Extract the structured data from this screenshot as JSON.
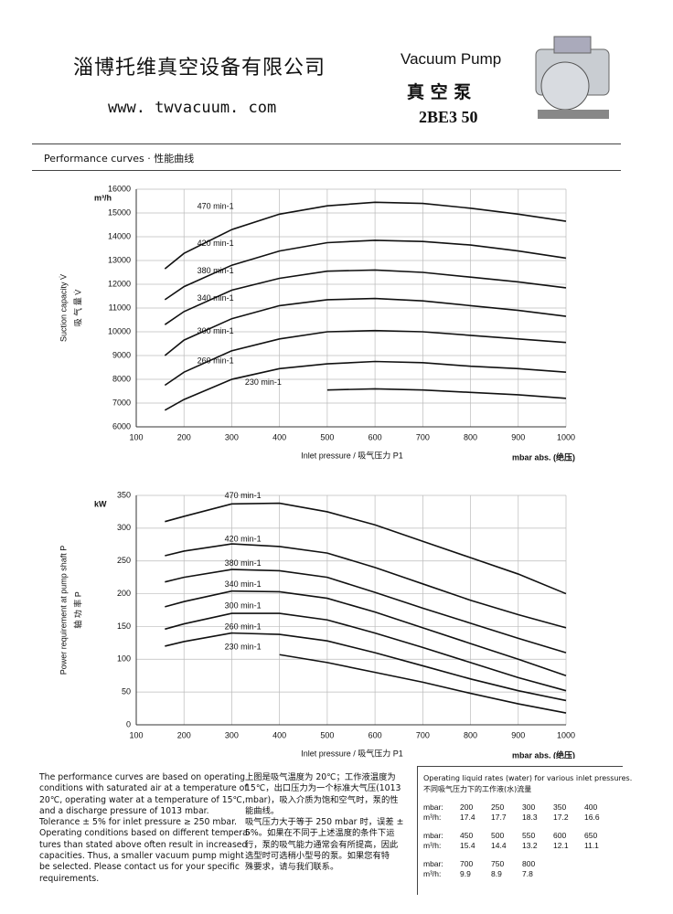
{
  "header": {
    "company": "淄博托维真空设备有限公司",
    "website": "www. twvacuum. com",
    "product_en": "Vacuum Pump",
    "product_cn": "真 空 泵",
    "model": "2BE3 50"
  },
  "section_title": "Performance curves · 性能曲线",
  "chart_data": [
    {
      "type": "line",
      "y_unit": "m³/h",
      "y_label": "Suction capacity V̇",
      "y_label_cn": "吸 气 量 V̇",
      "x_label": "Inlet pressure / 吸气压力 P1",
      "x_unit": "mbar abs. (绝压)",
      "x": [
        160,
        200,
        300,
        400,
        500,
        600,
        700,
        800,
        900,
        1000
      ],
      "xlim": [
        100,
        1000
      ],
      "xticks": [
        100,
        200,
        300,
        400,
        500,
        600,
        700,
        800,
        900,
        1000
      ],
      "ylim": [
        6000,
        16000
      ],
      "yticks": [
        6000,
        7000,
        8000,
        9000,
        10000,
        11000,
        12000,
        13000,
        14000,
        15000,
        16000
      ],
      "grid": true,
      "color": "#111111",
      "series": [
        {
          "name": "470 min-1",
          "values": [
            12650,
            13300,
            14300,
            14950,
            15300,
            15450,
            15400,
            15200,
            14950,
            14650
          ]
        },
        {
          "name": "420 min-1",
          "values": [
            11350,
            11900,
            12800,
            13400,
            13750,
            13850,
            13800,
            13650,
            13400,
            13100
          ]
        },
        {
          "name": "380 min-1",
          "values": [
            10300,
            10850,
            11750,
            12250,
            12550,
            12600,
            12500,
            12300,
            12100,
            11850
          ]
        },
        {
          "name": "340 min-1",
          "values": [
            9000,
            9650,
            10550,
            11100,
            11350,
            11400,
            11300,
            11100,
            10900,
            10650
          ]
        },
        {
          "name": "300 min-1",
          "values": [
            7750,
            8300,
            9200,
            9700,
            10000,
            10050,
            10000,
            9850,
            9700,
            9550
          ]
        },
        {
          "name": "260 min-1",
          "values": [
            6700,
            7150,
            8000,
            8450,
            8650,
            8750,
            8700,
            8550,
            8450,
            8300
          ]
        },
        {
          "name": "230 min-1",
          "values": [
            null,
            null,
            null,
            null,
            7550,
            7600,
            7550,
            7450,
            7350,
            7200
          ]
        }
      ]
    },
    {
      "type": "line",
      "y_unit": "kW",
      "y_label": "Power requirement at pump shaft P",
      "y_label_cn": "轴 功 率 P",
      "x_label": "Inlet pressure / 吸气压力 P1",
      "x_unit": "mbar abs. (绝压)",
      "x": [
        160,
        200,
        300,
        400,
        500,
        600,
        700,
        800,
        900,
        1000
      ],
      "xlim": [
        100,
        1000
      ],
      "xticks": [
        100,
        200,
        300,
        400,
        500,
        600,
        700,
        800,
        900,
        1000
      ],
      "ylim": [
        0,
        350
      ],
      "yticks": [
        0,
        50,
        100,
        150,
        200,
        250,
        300,
        350
      ],
      "grid": true,
      "color": "#111111",
      "series": [
        {
          "name": "470 min-1",
          "values": [
            310,
            318,
            337,
            338,
            325,
            305,
            280,
            255,
            230,
            200
          ]
        },
        {
          "name": "420 min-1",
          "values": [
            258,
            265,
            276,
            272,
            262,
            240,
            215,
            190,
            168,
            148
          ]
        },
        {
          "name": "380 min-1",
          "values": [
            218,
            225,
            237,
            235,
            225,
            202,
            178,
            155,
            132,
            110
          ]
        },
        {
          "name": "340 min-1",
          "values": [
            180,
            188,
            204,
            203,
            193,
            172,
            148,
            124,
            100,
            75
          ]
        },
        {
          "name": "300 min-1",
          "values": [
            146,
            154,
            170,
            170,
            160,
            140,
            118,
            95,
            72,
            52
          ]
        },
        {
          "name": "260 min-1",
          "values": [
            120,
            127,
            140,
            138,
            128,
            110,
            90,
            70,
            52,
            37
          ]
        },
        {
          "name": "230 min-1",
          "values": [
            null,
            null,
            null,
            107,
            95,
            80,
            65,
            48,
            32,
            18
          ]
        }
      ]
    }
  ],
  "notes": {
    "en": [
      "The performance curves are based on operating",
      "conditions with saturated air at a temperature of",
      "20℃, operating water at a temperature of 15℃,",
      "and a discharge pressure of 1013 mbar.",
      "Tolerance ± 5% for inlet pressure ≥ 250 mbar.",
      "Operating conditions based on different tempera-",
      "tures than stated above often result in increased",
      "capacities. Thus, a smaller vacuum pump might",
      "be selected. Please contact us for your specific",
      "requirements."
    ],
    "cn": [
      "上图是吸气温度为 20℃；工作液温度为",
      "15℃，出口压力为一个标准大气压(1013",
      "mbar)，吸入介质为饱和空气时，泵的性",
      "能曲线。",
      "吸气压力大于等于 250 mbar 时，误差 ±",
      "5%。如果在不同于上述温度的条件下运",
      "行，泵的吸气能力通常会有所提高，因此",
      "选型时可选稍小型号的泵。如果您有特",
      "殊要求，请与我们联系。"
    ]
  },
  "table": {
    "title": "Operating liquid rates (water) for various inlet pressures.",
    "title_cn": "不同吸气压力下的工作液(水)流量",
    "groups": [
      [
        [
          "mbar:",
          "200",
          "250",
          "300",
          "350",
          "400"
        ],
        [
          "m³/h:",
          "17.4",
          "17.7",
          "18.3",
          "17.2",
          "16.6"
        ]
      ],
      [
        [
          "mbar:",
          "450",
          "500",
          "550",
          "600",
          "650"
        ],
        [
          "m³/h:",
          "15.4",
          "14.4",
          "13.2",
          "12.1",
          "11.1"
        ]
      ],
      [
        [
          "mbar:",
          "700",
          "750",
          "800"
        ],
        [
          "m³/h:",
          "9.9",
          "8.9",
          "7.8"
        ]
      ]
    ]
  }
}
